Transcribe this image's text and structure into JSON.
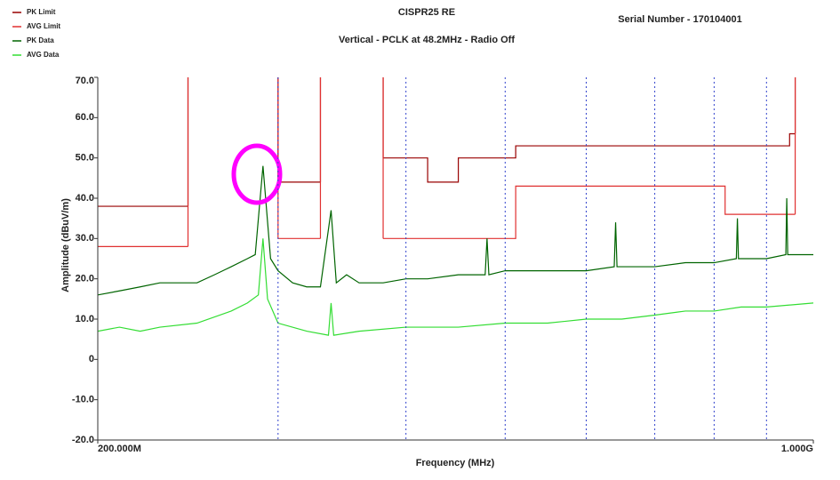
{
  "chart_data": {
    "type": "line",
    "title": "CISPR25 RE",
    "subtitle": "Vertical - PCLK at 48.2MHz - Radio Off",
    "annotation": "Serial Number - 170104001",
    "xlabel": "Frequency (MHz)",
    "ylabel": "Amplitude (dBuV/m)",
    "xscale": "log",
    "xlim": [
      200,
      1000
    ],
    "xticks": [
      {
        "value": 200,
        "label": "200.000M"
      },
      {
        "value": 1000,
        "label": "1.000G"
      }
    ],
    "x_gridlines": [
      300,
      400,
      500,
      600,
      700,
      800,
      900
    ],
    "ylim": [
      -20,
      70
    ],
    "yticks": [
      {
        "value": -20,
        "label": "-20.0"
      },
      {
        "value": -10,
        "label": "-10.0"
      },
      0,
      {
        "value": 10,
        "label": "10.0"
      },
      {
        "value": 20,
        "label": "20.0"
      },
      {
        "value": 30,
        "label": "30.0"
      },
      {
        "value": 40,
        "label": "40.0"
      },
      {
        "value": 50,
        "label": "50.0"
      },
      {
        "value": 60,
        "label": "60.0"
      },
      {
        "value": 70,
        "label": "70.0"
      }
    ],
    "legend": "top-left",
    "series": [
      {
        "name": "PK Limit",
        "color": "#990000",
        "style": "step",
        "x": [
          200,
          245,
          null,
          300,
          330,
          null,
          380,
          420,
          420,
          450,
          450,
          512,
          512,
          948,
          948,
          960
        ],
        "values": [
          38,
          38,
          null,
          44,
          44,
          null,
          50,
          50,
          44,
          44,
          50,
          50,
          53,
          53,
          56,
          56
        ]
      },
      {
        "name": "AVG Limit",
        "color": "#e03030",
        "style": "step",
        "x": [
          200,
          245,
          null,
          300,
          330,
          null,
          380,
          512,
          512,
          820,
          820,
          960
        ],
        "values": [
          28,
          28,
          null,
          30,
          30,
          null,
          30,
          30,
          43,
          43,
          36,
          36
        ]
      },
      {
        "name": "PK Data",
        "color": "#006400",
        "x": [
          200,
          210,
          220,
          230,
          240,
          250,
          260,
          270,
          280,
          285,
          290,
          295,
          300,
          310,
          320,
          330,
          338,
          342,
          350,
          360,
          380,
          400,
          420,
          450,
          478,
          480,
          482,
          500,
          550,
          600,
          639,
          641,
          643,
          700,
          750,
          800,
          841,
          843,
          845,
          900,
          940,
          942,
          944,
          1000
        ],
        "values": [
          16,
          17,
          18,
          19,
          19,
          19,
          21,
          23,
          25,
          26,
          48,
          25,
          22,
          19,
          18,
          18,
          37,
          19,
          21,
          19,
          19,
          20,
          20,
          21,
          21,
          30,
          21,
          22,
          22,
          22,
          23,
          34,
          23,
          23,
          24,
          24,
          25,
          35,
          25,
          25,
          26,
          40,
          26,
          26
        ]
      },
      {
        "name": "AVG Data",
        "color": "#33dd33",
        "x": [
          200,
          210,
          220,
          230,
          250,
          270,
          280,
          287,
          290,
          293,
          300,
          320,
          336,
          338,
          340,
          360,
          400,
          450,
          500,
          550,
          600,
          650,
          700,
          750,
          800,
          850,
          900,
          1000
        ],
        "values": [
          7,
          8,
          7,
          8,
          9,
          12,
          14,
          16,
          30,
          15,
          9,
          7,
          6,
          14,
          6,
          7,
          8,
          8,
          9,
          9,
          10,
          10,
          11,
          12,
          12,
          13,
          13,
          14
        ]
      }
    ]
  }
}
